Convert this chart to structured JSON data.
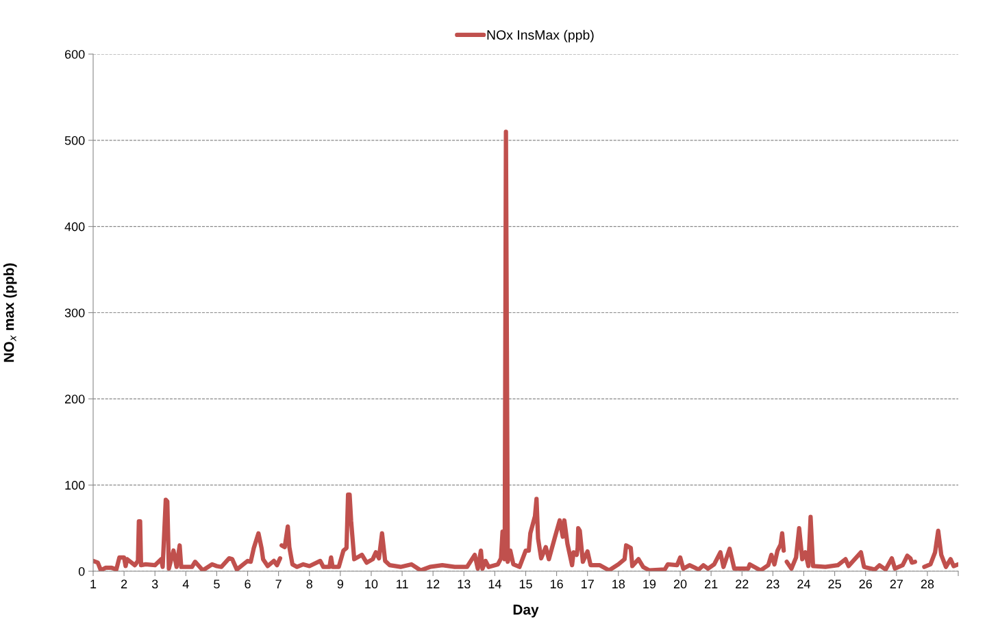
{
  "chart_data": {
    "type": "line",
    "xlabel": "Day",
    "ylabel": "NO$_{x}$ max (ppb)",
    "x": [
      1.0,
      1.15,
      1.25,
      1.4,
      1.6,
      1.75,
      1.85,
      2.0,
      2.05,
      2.1,
      2.35,
      2.45,
      2.48,
      2.52,
      2.55,
      2.7,
      3.0,
      3.2,
      3.25,
      3.35,
      3.4,
      3.45,
      3.6,
      3.7,
      3.8,
      3.85,
      4.2,
      4.3,
      4.55,
      4.85,
      5.0,
      5.15,
      5.4,
      5.5,
      5.65,
      6.0,
      6.1,
      6.2,
      6.35,
      6.45,
      6.5,
      6.65,
      6.85,
      6.95,
      7.05,
      7.08,
      7.1,
      7.2,
      7.3,
      7.35,
      7.45,
      7.6,
      7.8,
      8.0,
      8.35,
      8.45,
      8.65,
      8.7,
      8.75,
      8.95,
      9.1,
      9.2,
      9.25,
      9.3,
      9.35,
      9.45,
      9.7,
      9.85,
      10.05,
      10.15,
      10.25,
      10.35,
      10.45,
      10.6,
      10.95,
      11.3,
      11.6,
      11.9,
      12.3,
      12.7,
      13.1,
      13.35,
      13.45,
      13.55,
      13.6,
      13.7,
      13.8,
      14.1,
      14.2,
      14.25,
      14.32,
      14.36,
      14.42,
      14.5,
      14.6,
      14.8,
      15.0,
      15.1,
      15.15,
      15.3,
      15.35,
      15.4,
      15.5,
      15.65,
      15.75,
      15.95,
      16.1,
      16.2,
      16.25,
      16.35,
      16.5,
      16.55,
      16.65,
      16.68,
      16.7,
      16.75,
      16.85,
      17.0,
      17.1,
      17.4,
      17.7,
      18.0,
      18.2,
      18.25,
      18.4,
      18.45,
      18.65,
      18.8,
      19.0,
      19.5,
      19.6,
      19.9,
      20.0,
      20.1,
      20.3,
      20.6,
      20.75,
      20.9,
      21.1,
      21.3,
      21.4,
      21.6,
      21.75,
      22.2,
      22.25,
      22.6,
      22.85,
      22.95,
      23.05,
      23.15,
      23.25,
      23.3,
      23.35,
      23.4,
      23.45,
      23.6,
      23.75,
      23.85,
      23.95,
      24.05,
      24.15,
      24.22,
      24.3,
      24.7,
      25.1,
      25.35,
      25.45,
      25.7,
      25.85,
      25.95,
      26.3,
      26.45,
      26.65,
      26.85,
      26.95,
      27.2,
      27.35,
      27.45,
      27.5,
      27.6,
      27.75,
      27.9,
      28.1,
      28.25,
      28.35,
      28.45,
      28.6,
      28.75,
      28.85,
      29.0
    ],
    "series": [
      {
        "name": "NOx InsMax (ppb)",
        "color": "#c0504d",
        "values": [
          12,
          10,
          1,
          4,
          4,
          2,
          16,
          16,
          6,
          14,
          7,
          12,
          58,
          58,
          7,
          8,
          7,
          14,
          5,
          83,
          81,
          3,
          24,
          5,
          30,
          5,
          5,
          11,
          1,
          8,
          6,
          5,
          15,
          14,
          2,
          12,
          11,
          27,
          44,
          27,
          14,
          6,
          12,
          7,
          15,
          null,
          30,
          28,
          52,
          28,
          8,
          5,
          8,
          6,
          12,
          5,
          5,
          16,
          5,
          5,
          24,
          27,
          89,
          89,
          58,
          14,
          19,
          10,
          14,
          22,
          15,
          44,
          12,
          7,
          5,
          8,
          1,
          5,
          7,
          5,
          5,
          19,
          3,
          24,
          3,
          12,
          5,
          8,
          15,
          46,
          14,
          510,
          11,
          24,
          8,
          5,
          24,
          24,
          44,
          64,
          84,
          38,
          15,
          28,
          14,
          40,
          59,
          40,
          59,
          32,
          7,
          22,
          19,
          27,
          50,
          47,
          11,
          23,
          7,
          7,
          1,
          8,
          14,
          30,
          27,
          6,
          14,
          5,
          1,
          2,
          8,
          7,
          16,
          3,
          7,
          2,
          7,
          3,
          8,
          22,
          5,
          26,
          3,
          3,
          8,
          1,
          7,
          19,
          8,
          24,
          31,
          44,
          24,
          null,
          11,
          3,
          16,
          50,
          14,
          22,
          6,
          63,
          6,
          5,
          7,
          14,
          6,
          16,
          22,
          5,
          2,
          7,
          2,
          15,
          3,
          7,
          18,
          15,
          10,
          11,
          null,
          5,
          8,
          22,
          47,
          19,
          5,
          14,
          6,
          8
        ]
      }
    ],
    "xlim": [
      1,
      29
    ],
    "xticks": [
      1,
      2,
      3,
      4,
      5,
      6,
      7,
      8,
      9,
      10,
      11,
      12,
      13,
      14,
      15,
      16,
      17,
      18,
      19,
      20,
      21,
      22,
      23,
      24,
      25,
      26,
      27,
      28,
      {
        "value": 29,
        "label": null
      }
    ],
    "ylim": [
      0,
      600
    ],
    "yticks": [
      0,
      100,
      200,
      300,
      400,
      500,
      600
    ],
    "grid": "y",
    "legend": "top",
    "line_style": "solid",
    "marker": "none"
  }
}
